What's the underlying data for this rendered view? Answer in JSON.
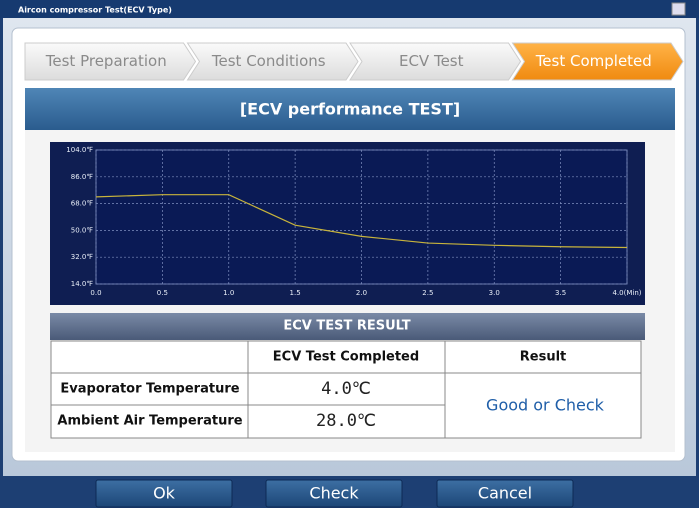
{
  "window": {
    "title": "Aircon compressor Test(ECV Type)"
  },
  "steps": [
    "Test Preparation",
    "Test Conditions",
    "ECV Test",
    "Test Completed"
  ],
  "panel": {
    "title": "[ECV performance TEST]"
  },
  "chart": {
    "type": "line",
    "x": [
      0,
      0.5,
      1.0,
      1.5,
      2.0,
      2.5,
      3.0,
      3.5,
      4.0
    ],
    "series": [
      {
        "color": "#c8b43c",
        "values": [
          72.5,
          74,
          74,
          53.5,
          46,
          41.5,
          40,
          39,
          38.5
        ]
      }
    ],
    "xlim": [
      0,
      4
    ],
    "ylim": [
      14,
      104
    ],
    "xticks": [
      {
        "value": 0,
        "label": "0.0"
      },
      {
        "value": 0.5,
        "label": "0.5"
      },
      {
        "value": 1,
        "label": "1.0"
      },
      {
        "value": 1.5,
        "label": "1.5"
      },
      {
        "value": 2,
        "label": "2.0"
      },
      {
        "value": 2.5,
        "label": "2.5"
      },
      {
        "value": 3,
        "label": "3.0"
      },
      {
        "value": 3.5,
        "label": "3.5"
      },
      {
        "value": 4,
        "label": "4.0(Min)"
      }
    ],
    "yticks": [
      {
        "value": 14,
        "label": "14.0℉"
      },
      {
        "value": 32,
        "label": "32.0℉"
      },
      {
        "value": 50,
        "label": "50.0℉"
      },
      {
        "value": 68,
        "label": "68.0℉"
      },
      {
        "value": 86,
        "label": "86.0℉"
      },
      {
        "value": 104,
        "label": "104.0℉"
      }
    ],
    "grid": true
  },
  "result": {
    "title": "ECV TEST RESULT",
    "header": [
      "ECV Test Completed",
      "Result"
    ],
    "rows": [
      [
        "Evaporator Temperature",
        "4.0℃"
      ],
      [
        "Ambient Air Temperature",
        "28.0℃"
      ]
    ],
    "verdict": "Good or Check"
  },
  "buttons": [
    "Ok",
    "Check",
    "Cancel"
  ]
}
